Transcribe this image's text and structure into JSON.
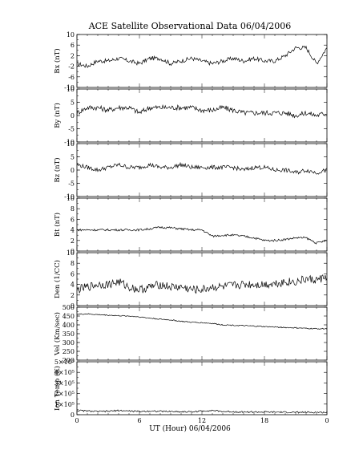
{
  "chart_data": [
    {
      "type": "line",
      "ylabel": "Bx (nT)",
      "ylim": [
        -10,
        10
      ],
      "yticks": [
        "10",
        "6",
        "2",
        "-2",
        "-6",
        "-10"
      ],
      "series": [
        {
          "x": [
            0,
            1,
            2,
            3,
            4,
            5,
            6,
            7,
            8,
            9,
            10,
            11,
            12,
            13,
            14,
            15,
            16,
            17,
            18,
            19,
            20,
            21,
            22,
            23,
            24
          ],
          "values": [
            -1,
            -2,
            0,
            0,
            1,
            0,
            -1,
            1,
            1,
            -1,
            0,
            1,
            0,
            -1,
            0,
            1,
            0,
            1,
            0,
            0,
            2,
            5,
            5,
            -1,
            5
          ]
        }
      ]
    },
    {
      "type": "line",
      "ylabel": "By (nT)",
      "ylim": [
        -10,
        10
      ],
      "yticks": [
        "10",
        "5",
        "0",
        "-5",
        "-10"
      ],
      "series": [
        {
          "x": [
            0,
            1,
            2,
            3,
            4,
            5,
            6,
            7,
            8,
            9,
            10,
            11,
            12,
            13,
            14,
            15,
            16,
            17,
            18,
            19,
            20,
            21,
            22,
            23,
            24
          ],
          "values": [
            1,
            3,
            3,
            2,
            3,
            3,
            1,
            3,
            3,
            3,
            3,
            3,
            2,
            2,
            3,
            2,
            1,
            1,
            1,
            1,
            1,
            0,
            1,
            0,
            1
          ]
        }
      ]
    },
    {
      "type": "line",
      "ylabel": "Bz (nT)",
      "ylim": [
        -10,
        10
      ],
      "yticks": [
        "10",
        "5",
        "0",
        "-5",
        "-10"
      ],
      "series": [
        {
          "x": [
            0,
            1,
            2,
            3,
            4,
            5,
            6,
            7,
            8,
            9,
            10,
            11,
            12,
            13,
            14,
            15,
            16,
            17,
            18,
            19,
            20,
            21,
            22,
            23,
            24
          ],
          "values": [
            2,
            1,
            0,
            1,
            2,
            1,
            1,
            2,
            1,
            1,
            2,
            1,
            1,
            1,
            1,
            1,
            0,
            1,
            1,
            0,
            0,
            -1,
            0,
            -1,
            0
          ]
        }
      ]
    },
    {
      "type": "line",
      "ylabel": "Bt (nT)",
      "ylim": [
        0,
        10
      ],
      "yticks": [
        "10",
        "8",
        "6",
        "4",
        "2",
        "0"
      ],
      "series": [
        {
          "x": [
            0,
            1,
            2,
            3,
            4,
            5,
            6,
            7,
            8,
            9,
            10,
            11,
            12,
            13,
            14,
            15,
            16,
            17,
            18,
            19,
            20,
            21,
            22,
            23,
            24
          ],
          "values": [
            4,
            4,
            4,
            4,
            4,
            4,
            4,
            4.2,
            4.5,
            4.4,
            4.2,
            4,
            4,
            2.8,
            3,
            3,
            2.8,
            2.5,
            2,
            2,
            2.2,
            2.5,
            2.5,
            1.5,
            2
          ]
        }
      ]
    },
    {
      "type": "line",
      "ylabel": "Den (1/CC)",
      "ylim": [
        0,
        10
      ],
      "yticks": [
        "10",
        "8",
        "6",
        "4",
        "2",
        "0"
      ],
      "series": [
        {
          "x": [
            0,
            1,
            2,
            3,
            4,
            5,
            6,
            7,
            8,
            9,
            10,
            11,
            12,
            13,
            14,
            15,
            16,
            17,
            18,
            19,
            20,
            21,
            22,
            23,
            24
          ],
          "values": [
            3,
            3.5,
            4,
            4,
            4.5,
            3.5,
            3,
            3.5,
            4,
            3.5,
            3.5,
            3,
            3,
            3.5,
            3.5,
            3.8,
            4,
            4,
            4,
            4.2,
            4.5,
            4.5,
            5,
            4.8,
            5.5
          ]
        }
      ]
    },
    {
      "type": "line",
      "ylabel": "Vel (Km/sec)",
      "ylim": [
        200,
        500
      ],
      "yticks": [
        "500",
        "450",
        "400",
        "350",
        "300",
        "250",
        "200"
      ],
      "series": [
        {
          "x": [
            0,
            1,
            2,
            3,
            4,
            5,
            6,
            7,
            8,
            9,
            10,
            11,
            12,
            13,
            14,
            15,
            16,
            17,
            18,
            19,
            20,
            21,
            22,
            23,
            24
          ],
          "values": [
            460,
            462,
            458,
            455,
            452,
            450,
            445,
            438,
            432,
            428,
            420,
            415,
            412,
            408,
            400,
            398,
            395,
            393,
            390,
            388,
            385,
            383,
            380,
            378,
            378
          ]
        }
      ]
    },
    {
      "type": "line",
      "ylabel": "Ion Temp (K)",
      "ylim": [
        0,
        500000
      ],
      "yticks": [
        "5×10⁵",
        "4×10⁵",
        "3×10⁵",
        "2×10⁵",
        "1×10⁵",
        "0"
      ],
      "series": [
        {
          "x": [
            0,
            1,
            2,
            3,
            4,
            5,
            6,
            7,
            8,
            9,
            10,
            11,
            12,
            13,
            14,
            15,
            16,
            17,
            18,
            19,
            20,
            21,
            22,
            23,
            24
          ],
          "values": [
            40000,
            35000,
            30000,
            32000,
            40000,
            35000,
            30000,
            35000,
            32000,
            30000,
            28000,
            27000,
            35000,
            40000,
            30000,
            28000,
            26000,
            25000,
            25000,
            24000,
            23000,
            22000,
            22000,
            22000,
            22000
          ]
        }
      ]
    }
  ],
  "page": {
    "title": "ACE Satellite Observational Data   06/04/2006",
    "xlabel": "UT (Hour)  06/04/2006",
    "xticks": [
      "0",
      "6",
      "12",
      "18",
      "0"
    ]
  }
}
